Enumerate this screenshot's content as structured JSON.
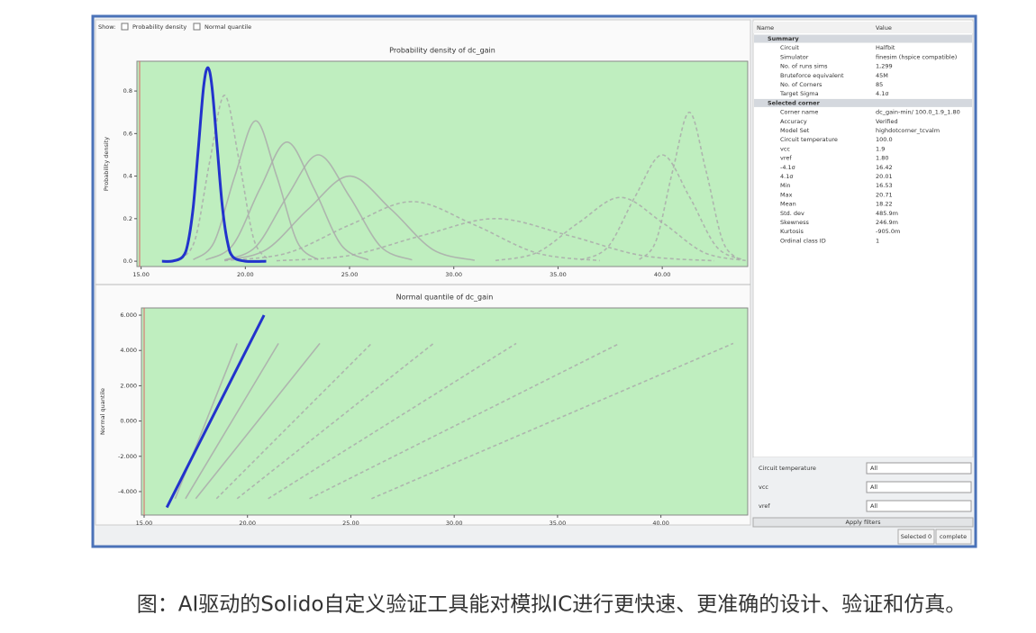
{
  "toolbar": {
    "label": "Show:",
    "options": [
      "Probability density",
      "Normal quantile"
    ]
  },
  "chart_data": [
    {
      "type": "line",
      "title": "Probability density of dc_gain",
      "y_label": "Probability density",
      "xlim": [
        14.8,
        44.1
      ],
      "ylim": [
        -0.025,
        0.94
      ],
      "xticks": [
        {
          "value": 15,
          "label": "15.00"
        },
        {
          "value": 20,
          "label": "20.00"
        },
        {
          "value": 25,
          "label": "25.00"
        },
        {
          "value": 30,
          "label": "30.00"
        },
        {
          "value": 35,
          "label": "35.00"
        },
        {
          "value": 40,
          "label": "40.00"
        }
      ],
      "yticks": [
        {
          "value": 0,
          "label": "0.0"
        },
        0.2,
        0.4,
        0.6,
        0.8
      ],
      "background": "#bfeebf",
      "series": [
        {
          "color": "#aaaaaa",
          "dash": true,
          "x": [
            16.9,
            17.6,
            18.3,
            19,
            19.7,
            20.4,
            21.1
          ],
          "values": [
            0.009,
            0.105,
            0.473,
            0.78,
            0.473,
            0.105,
            0.009
          ]
        },
        {
          "color": "#aaaaaa",
          "dash": false,
          "x": [
            17.5,
            18.5,
            19.5,
            20.5,
            21.5,
            22.5,
            23.5
          ],
          "values": [
            0.007,
            0.089,
            0.401,
            0.66,
            0.401,
            0.089,
            0.007
          ]
        },
        {
          "color": "#aaaaaa",
          "dash": false,
          "x": [
            18.1,
            19.4,
            20.7,
            22,
            23.3,
            24.6,
            25.9
          ],
          "values": [
            0.006,
            0.076,
            0.34,
            0.56,
            0.34,
            0.076,
            0.006
          ]
        },
        {
          "color": "#aaaaaa",
          "dash": false,
          "x": [
            19,
            20.5,
            22,
            23.5,
            25,
            26.5,
            28
          ],
          "values": [
            0.006,
            0.068,
            0.304,
            0.5,
            0.304,
            0.068,
            0.006
          ]
        },
        {
          "color": "#aaaaaa",
          "dash": false,
          "x": [
            19,
            21,
            23,
            25,
            27,
            29,
            31
          ],
          "values": [
            0.004,
            0.054,
            0.243,
            0.4,
            0.243,
            0.054,
            0.004
          ]
        },
        {
          "color": "#aaaaaa",
          "dash": true,
          "x": [
            19,
            22,
            25,
            28,
            31,
            34,
            37
          ],
          "values": [
            0.003,
            0.038,
            0.17,
            0.28,
            0.17,
            0.038,
            0.003
          ]
        },
        {
          "color": "#aaaaaa",
          "dash": true,
          "x": [
            21.5,
            25,
            28.5,
            32,
            35.5,
            39,
            42.5
          ],
          "values": [
            0.002,
            0.027,
            0.121,
            0.2,
            0.121,
            0.027,
            0.002
          ]
        },
        {
          "color": "#aaaaaa",
          "dash": true,
          "x": [
            32,
            34,
            36,
            38,
            40,
            42,
            44
          ],
          "values": [
            0.003,
            0.041,
            0.182,
            0.3,
            0.182,
            0.041,
            0.003
          ]
        },
        {
          "color": "#aaaaaa",
          "dash": true,
          "x": [
            36.1,
            37.4,
            38.7,
            40,
            41.3,
            42.6,
            43.9
          ],
          "values": [
            0.006,
            0.068,
            0.304,
            0.5,
            0.304,
            0.068,
            0.006
          ]
        },
        {
          "color": "#aaaaaa",
          "dash": true,
          "x": [
            38.9,
            39.7,
            40.5,
            41.3,
            42.1,
            42.9,
            43.7
          ],
          "values": [
            0.008,
            0.095,
            0.425,
            0.7,
            0.425,
            0.095,
            0.008
          ]
        },
        {
          "color": "#2233cc",
          "dash": false,
          "x": [
            16,
            16.5,
            17,
            17.25,
            17.5,
            17.75,
            18,
            18.2,
            18.4,
            18.65,
            18.9,
            19.15,
            19.4,
            20,
            21
          ],
          "values": [
            0,
            0.0005,
            0.021,
            0.087,
            0.254,
            0.537,
            0.82,
            0.91,
            0.82,
            0.537,
            0.254,
            0.087,
            0.021,
            0,
            0
          ]
        }
      ]
    },
    {
      "type": "line",
      "title": "Normal quantile of dc_gain",
      "y_label": "Normal quantile",
      "xlim": [
        14.87,
        44.2
      ],
      "ylim": [
        -5.33,
        6.41
      ],
      "xticks": [
        {
          "value": 15,
          "label": "15.00"
        },
        {
          "value": 20,
          "label": "20.00"
        },
        {
          "value": 25,
          "label": "25.00"
        },
        {
          "value": 30,
          "label": "30.00"
        },
        {
          "value": 35,
          "label": "35.00"
        },
        {
          "value": 40,
          "label": "40.00"
        }
      ],
      "yticks": [
        {
          "value": -4,
          "label": "-4.000"
        },
        {
          "value": -2,
          "label": "-2.000"
        },
        {
          "value": 0,
          "label": "0.000"
        },
        {
          "value": 2,
          "label": "2.000"
        },
        {
          "value": 4,
          "label": "4.000"
        },
        {
          "value": 6,
          "label": "6.000"
        }
      ],
      "background": "#bfeebf",
      "series": [
        {
          "color": "#aaaaaa",
          "dash": false,
          "x": [
            16.5,
            19.5
          ],
          "values": [
            -4.4,
            4.4
          ]
        },
        {
          "color": "#aaaaaa",
          "dash": false,
          "x": [
            17,
            21.5
          ],
          "values": [
            -4.4,
            4.4
          ]
        },
        {
          "color": "#aaaaaa",
          "dash": false,
          "x": [
            17.5,
            23.5
          ],
          "values": [
            -4.4,
            4.4
          ]
        },
        {
          "color": "#aaaaaa",
          "dash": true,
          "x": [
            18.5,
            26
          ],
          "values": [
            -4.4,
            4.4
          ]
        },
        {
          "color": "#aaaaaa",
          "dash": true,
          "x": [
            19.5,
            29
          ],
          "values": [
            -4.4,
            4.4
          ]
        },
        {
          "color": "#aaaaaa",
          "dash": true,
          "x": [
            21,
            33
          ],
          "values": [
            -4.4,
            4.4
          ]
        },
        {
          "color": "#aaaaaa",
          "dash": true,
          "x": [
            23,
            38
          ],
          "values": [
            -4.4,
            4.4
          ]
        },
        {
          "color": "#aaaaaa",
          "dash": true,
          "x": [
            26,
            43.5
          ],
          "values": [
            -4.4,
            4.4
          ]
        },
        {
          "color": "#2233cc",
          "dash": false,
          "x": [
            16.1,
            17,
            18,
            19,
            20,
            20.8
          ],
          "values": [
            -4.9,
            -2.81,
            -0.49,
            1.83,
            4.15,
            6.0
          ]
        }
      ]
    }
  ],
  "properties": {
    "headers": [
      "Name",
      "Value"
    ],
    "groups": [
      {
        "title": "Summary",
        "rows": [
          [
            "Circuit",
            "Halfbit"
          ],
          [
            "Simulator",
            "finesim (hspice compatible)"
          ],
          [
            "No. of runs sims",
            "1,299"
          ],
          [
            "Bruteforce equivalent",
            "45M"
          ],
          [
            "No. of Corners",
            "85"
          ],
          [
            "Target Sigma",
            "4.1σ"
          ]
        ]
      },
      {
        "title": "Selected corner",
        "rows": [
          [
            "Corner name",
            "dc_gain-min/ 100.0_1.9_1.80"
          ],
          [
            "Accuracy",
            "Verified"
          ],
          [
            "Model Set",
            "highdotcorner_tcvalm"
          ],
          [
            "Circuit temperature",
            "100.0"
          ],
          [
            "vcc",
            "1.9"
          ],
          [
            "vref",
            "1.80"
          ],
          [
            "-4.1σ",
            "16.42"
          ],
          [
            "4.1σ",
            "20.01"
          ],
          [
            "Min",
            "16.53"
          ],
          [
            "Max",
            "20.71"
          ],
          [
            "Mean",
            "18.22"
          ],
          [
            "Std. dev",
            "485.9m"
          ],
          [
            "Skewness",
            "246.9m"
          ],
          [
            "Kurtosis",
            "-905.0m"
          ],
          [
            "Ordinal class ID",
            "1"
          ]
        ]
      }
    ]
  },
  "filters": [
    {
      "label": "Circuit temperature",
      "value": "All"
    },
    {
      "label": "vcc",
      "value": "All"
    },
    {
      "label": "vref",
      "value": "All"
    }
  ],
  "apply_button": "Apply filters",
  "status": [
    "Selected 0",
    "complete"
  ],
  "caption": "图：AI驱动的Solido自定义验证工具能对模拟IC进行更快速、更准确的设计、验证和仿真。"
}
